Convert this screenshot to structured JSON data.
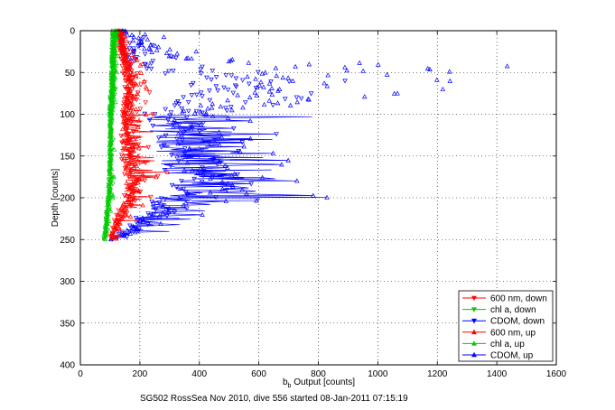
{
  "chart_data": {
    "type": "line",
    "title": "",
    "xlabel_main": "b",
    "xlabel_sub": "b",
    "xlabel_rest": " Output [counts]",
    "ylabel": "Depth [counts]",
    "caption": "SG502 RossSea Nov 2010, dive 556 started 08-Jan-2011 07:15:19",
    "xlim": [
      0,
      1600
    ],
    "ylim": [
      0,
      400
    ],
    "y_reversed": true,
    "grid": true,
    "grid_style": "dotted",
    "legend_position": "bottom-right",
    "x_ticks": [
      "0",
      "200",
      "400",
      "600",
      "800",
      "1000",
      "1200",
      "1400",
      "1600"
    ],
    "y_ticks": [
      "0",
      "50",
      "100",
      "150",
      "200",
      "250",
      "300",
      "350",
      "400"
    ],
    "x_tick_values": [
      0,
      200,
      400,
      600,
      800,
      1000,
      1200,
      1400,
      1600
    ],
    "y_tick_values": [
      0,
      50,
      100,
      150,
      200,
      250,
      300,
      350,
      400
    ],
    "series": [
      {
        "name": "600 nm, down",
        "color": "#ff0000",
        "marker": "triangle-down",
        "depth_range": [
          0,
          250
        ],
        "profile": [
          [
            0,
            130,
            20
          ],
          [
            25,
            135,
            25
          ],
          [
            50,
            150,
            40
          ],
          [
            75,
            160,
            45
          ],
          [
            100,
            150,
            60
          ],
          [
            125,
            145,
            65
          ],
          [
            150,
            150,
            70
          ],
          [
            175,
            165,
            75
          ],
          [
            200,
            160,
            70
          ],
          [
            220,
            130,
            50
          ],
          [
            240,
            110,
            35
          ],
          [
            250,
            100,
            20
          ]
        ]
      },
      {
        "name": "chl a, down",
        "color": "#00cc00",
        "marker": "triangle-down",
        "depth_range": [
          0,
          250
        ],
        "profile": [
          [
            0,
            110,
            10
          ],
          [
            50,
            105,
            10
          ],
          [
            100,
            100,
            10
          ],
          [
            150,
            100,
            10
          ],
          [
            200,
            95,
            10
          ],
          [
            250,
            80,
            10
          ]
        ]
      },
      {
        "name": "CDOM, down",
        "color": "#0000ff",
        "marker": "triangle-down",
        "depth_range": [
          0,
          250
        ],
        "profile": [
          [
            0,
            120,
            40
          ],
          [
            40,
            180,
            150
          ],
          [
            60,
            450,
            400
          ],
          [
            90,
            350,
            300
          ],
          [
            100,
            250,
            250
          ],
          [
            130,
            300,
            250
          ],
          [
            150,
            280,
            220
          ],
          [
            175,
            350,
            350
          ],
          [
            200,
            300,
            250
          ],
          [
            220,
            220,
            130
          ],
          [
            240,
            160,
            80
          ],
          [
            250,
            100,
            30
          ]
        ]
      },
      {
        "name": "600 nm, up",
        "color": "#ff0000",
        "marker": "triangle-up",
        "depth_range": [
          0,
          250
        ],
        "profile": [
          [
            0,
            130,
            20
          ],
          [
            25,
            145,
            30
          ],
          [
            50,
            165,
            45
          ],
          [
            75,
            170,
            50
          ],
          [
            100,
            155,
            60
          ],
          [
            125,
            150,
            65
          ],
          [
            150,
            160,
            75
          ],
          [
            175,
            170,
            75
          ],
          [
            200,
            165,
            70
          ],
          [
            220,
            130,
            50
          ],
          [
            240,
            110,
            35
          ],
          [
            250,
            100,
            20
          ]
        ]
      },
      {
        "name": "chl a, up",
        "color": "#00cc00",
        "marker": "triangle-up",
        "depth_range": [
          0,
          250
        ],
        "profile": [
          [
            0,
            115,
            10
          ],
          [
            50,
            110,
            10
          ],
          [
            100,
            102,
            10
          ],
          [
            150,
            100,
            10
          ],
          [
            200,
            95,
            10
          ],
          [
            250,
            82,
            10
          ]
        ]
      },
      {
        "name": "CDOM, up",
        "color": "#0000ff",
        "marker": "triangle-up",
        "depth_range": [
          0,
          250
        ],
        "profile": [
          [
            0,
            130,
            50
          ],
          [
            30,
            300,
            250
          ],
          [
            45,
            700,
            600
          ],
          [
            80,
            600,
            500
          ],
          [
            100,
            350,
            300
          ],
          [
            130,
            400,
            350
          ],
          [
            150,
            380,
            300
          ],
          [
            175,
            450,
            450
          ],
          [
            200,
            400,
            350
          ],
          [
            220,
            250,
            150
          ],
          [
            240,
            170,
            90
          ],
          [
            250,
            100,
            30
          ]
        ]
      }
    ]
  }
}
